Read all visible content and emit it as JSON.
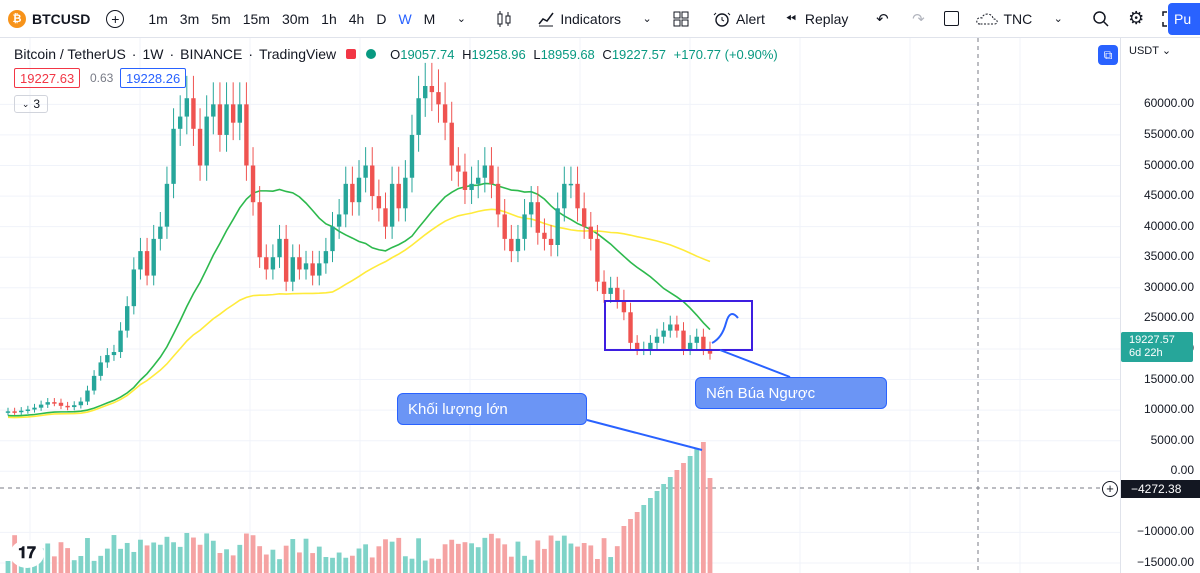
{
  "toolbar": {
    "symbol": "BTCUSD",
    "symbol_logo": "₿",
    "add_symbol": "+",
    "timeframes": [
      "1m",
      "3m",
      "5m",
      "15m",
      "30m",
      "1h",
      "4h",
      "D",
      "W",
      "M"
    ],
    "active_timeframe": "W",
    "indicators_label": "Indicators",
    "alert_label": "Alert",
    "replay_label": "Replay",
    "layout_name": "TNC",
    "publish_label": "Pu"
  },
  "legend": {
    "title": "Bitcoin / TetherUS",
    "interval": "1W",
    "exchange": "BINANCE",
    "source": "TradingView",
    "open_label": "O",
    "open": "19057.74",
    "high_label": "H",
    "high": "19258.96",
    "low_label": "L",
    "low": "18959.68",
    "close_label": "C",
    "close": "19227.57",
    "change": "+170.77 (+0.90%)",
    "bid": "19227.63",
    "spread": "0.63",
    "ask": "19228.26",
    "indicator_count": "3"
  },
  "price_axis": {
    "currency": "USDT",
    "ticks": [
      "60000.00",
      "55000.00",
      "50000.00",
      "45000.00",
      "40000.00",
      "35000.00",
      "30000.00",
      "25000.00",
      "20000.00",
      "15000.00",
      "10000.00",
      "5000.00",
      "0.00",
      "−10000.00",
      "−15000.00"
    ],
    "last_price": "19227.57",
    "countdown": "6d 22h",
    "crosshair_price": "−4272.38"
  },
  "annotations": {
    "hammer_label": "Nến Búa Ngược",
    "volume_label": "Khối lượng lớn"
  },
  "colors": {
    "up": "#26a69a",
    "down": "#ef5350",
    "ma_fast": "#2db94d",
    "ma_slow": "#ffeb3b",
    "box": "#3d1ee0",
    "callout": "#6b95f5"
  },
  "chart_data": {
    "type": "candlestick",
    "ylim": [
      -18000,
      66000
    ],
    "closes": [
      9800,
      9700,
      9900,
      10100,
      10400,
      10900,
      11300,
      11200,
      10700,
      10500,
      10800,
      11400,
      13200,
      15600,
      17800,
      19000,
      19500,
      23000,
      27000,
      33000,
      36000,
      32000,
      38000,
      40000,
      47000,
      56000,
      58000,
      61000,
      56000,
      50000,
      58000,
      60000,
      55000,
      60000,
      57000,
      60000,
      50000,
      44000,
      35000,
      33000,
      35000,
      38000,
      31000,
      35000,
      33000,
      34000,
      32000,
      34000,
      36000,
      40000,
      42000,
      47000,
      44000,
      48000,
      50000,
      45000,
      43000,
      40000,
      47000,
      43000,
      48000,
      55000,
      61000,
      63000,
      62000,
      60000,
      57000,
      50000,
      49000,
      46000,
      47000,
      48000,
      50000,
      47000,
      42000,
      38000,
      36000,
      38000,
      42000,
      44000,
      39000,
      38000,
      37000,
      43000,
      47000,
      47000,
      43000,
      40000,
      38000,
      31000,
      29000,
      30000,
      28000,
      26000,
      21000,
      20000,
      20000,
      21000,
      22000,
      23000,
      24000,
      23000,
      20000,
      21000,
      22000,
      20000,
      19227
    ]
  }
}
